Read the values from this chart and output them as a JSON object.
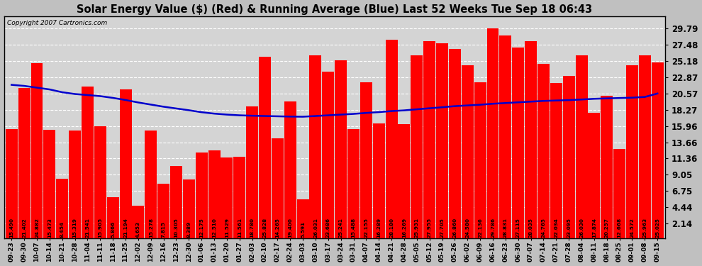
{
  "title": "Solar Energy Value ($) (Red) & Running Average (Blue) Last 52 Weeks Tue Sep 18 06:43",
  "copyright": "Copyright 2007 Cartronics.com",
  "bar_color": "#ff0000",
  "avg_color": "#0000cc",
  "bg_color": "#c0c0c0",
  "plot_bg": "#d4d4d4",
  "grid_color": "#ffffff",
  "yticks": [
    2.14,
    4.44,
    6.75,
    9.05,
    11.36,
    13.66,
    15.96,
    18.27,
    20.57,
    22.87,
    25.18,
    27.48,
    29.79
  ],
  "dates": [
    "09-23",
    "09-30",
    "10-07",
    "10-14",
    "10-21",
    "10-28",
    "11-04",
    "11-11",
    "11-18",
    "11-25",
    "12-02",
    "12-09",
    "12-16",
    "12-23",
    "12-30",
    "01-06",
    "01-13",
    "01-20",
    "01-27",
    "02-03",
    "02-10",
    "02-17",
    "02-24",
    "03-03",
    "03-10",
    "03-17",
    "03-24",
    "03-31",
    "04-07",
    "04-14",
    "04-21",
    "04-28",
    "05-05",
    "05-12",
    "05-19",
    "05-26",
    "06-02",
    "06-09",
    "06-16",
    "06-23",
    "06-30",
    "07-07",
    "07-14",
    "07-21",
    "07-28",
    "08-04",
    "08-11",
    "08-18",
    "08-25",
    "09-01",
    "09-08",
    "09-15"
  ],
  "values": [
    15.49,
    21.402,
    24.882,
    15.473,
    8.454,
    15.319,
    21.541,
    15.905,
    5.866,
    21.194,
    4.653,
    15.278,
    7.815,
    10.305,
    8.389,
    12.175,
    12.51,
    11.529,
    11.561,
    18.78,
    25.828,
    14.265,
    19.4,
    5.591,
    26.031,
    23.686,
    25.241,
    15.488,
    22.155,
    16.289,
    28.18,
    16.269,
    25.931,
    27.955,
    27.705,
    26.86,
    24.58,
    22.136,
    29.786,
    28.831,
    27.115,
    28.035,
    24.765,
    22.034,
    23.095,
    26.03,
    17.874,
    20.257,
    12.668,
    24.572,
    25.963,
    25.025
  ],
  "running_avg": [
    21.8,
    21.65,
    21.4,
    21.15,
    20.75,
    20.5,
    20.35,
    20.2,
    19.95,
    19.65,
    19.3,
    19.0,
    18.7,
    18.45,
    18.2,
    17.92,
    17.72,
    17.58,
    17.48,
    17.42,
    17.38,
    17.34,
    17.3,
    17.28,
    17.38,
    17.48,
    17.58,
    17.68,
    17.82,
    17.93,
    18.08,
    18.18,
    18.33,
    18.48,
    18.62,
    18.78,
    18.88,
    18.98,
    19.12,
    19.22,
    19.32,
    19.42,
    19.52,
    19.58,
    19.63,
    19.72,
    19.82,
    19.88,
    19.93,
    19.98,
    20.08,
    20.57
  ],
  "ymin": 0,
  "ymax": 31.5,
  "label_fontsize": 5.2,
  "ytick_fontsize": 8.5,
  "xtick_fontsize": 6.5,
  "title_fontsize": 10.5,
  "copyright_fontsize": 6.5
}
